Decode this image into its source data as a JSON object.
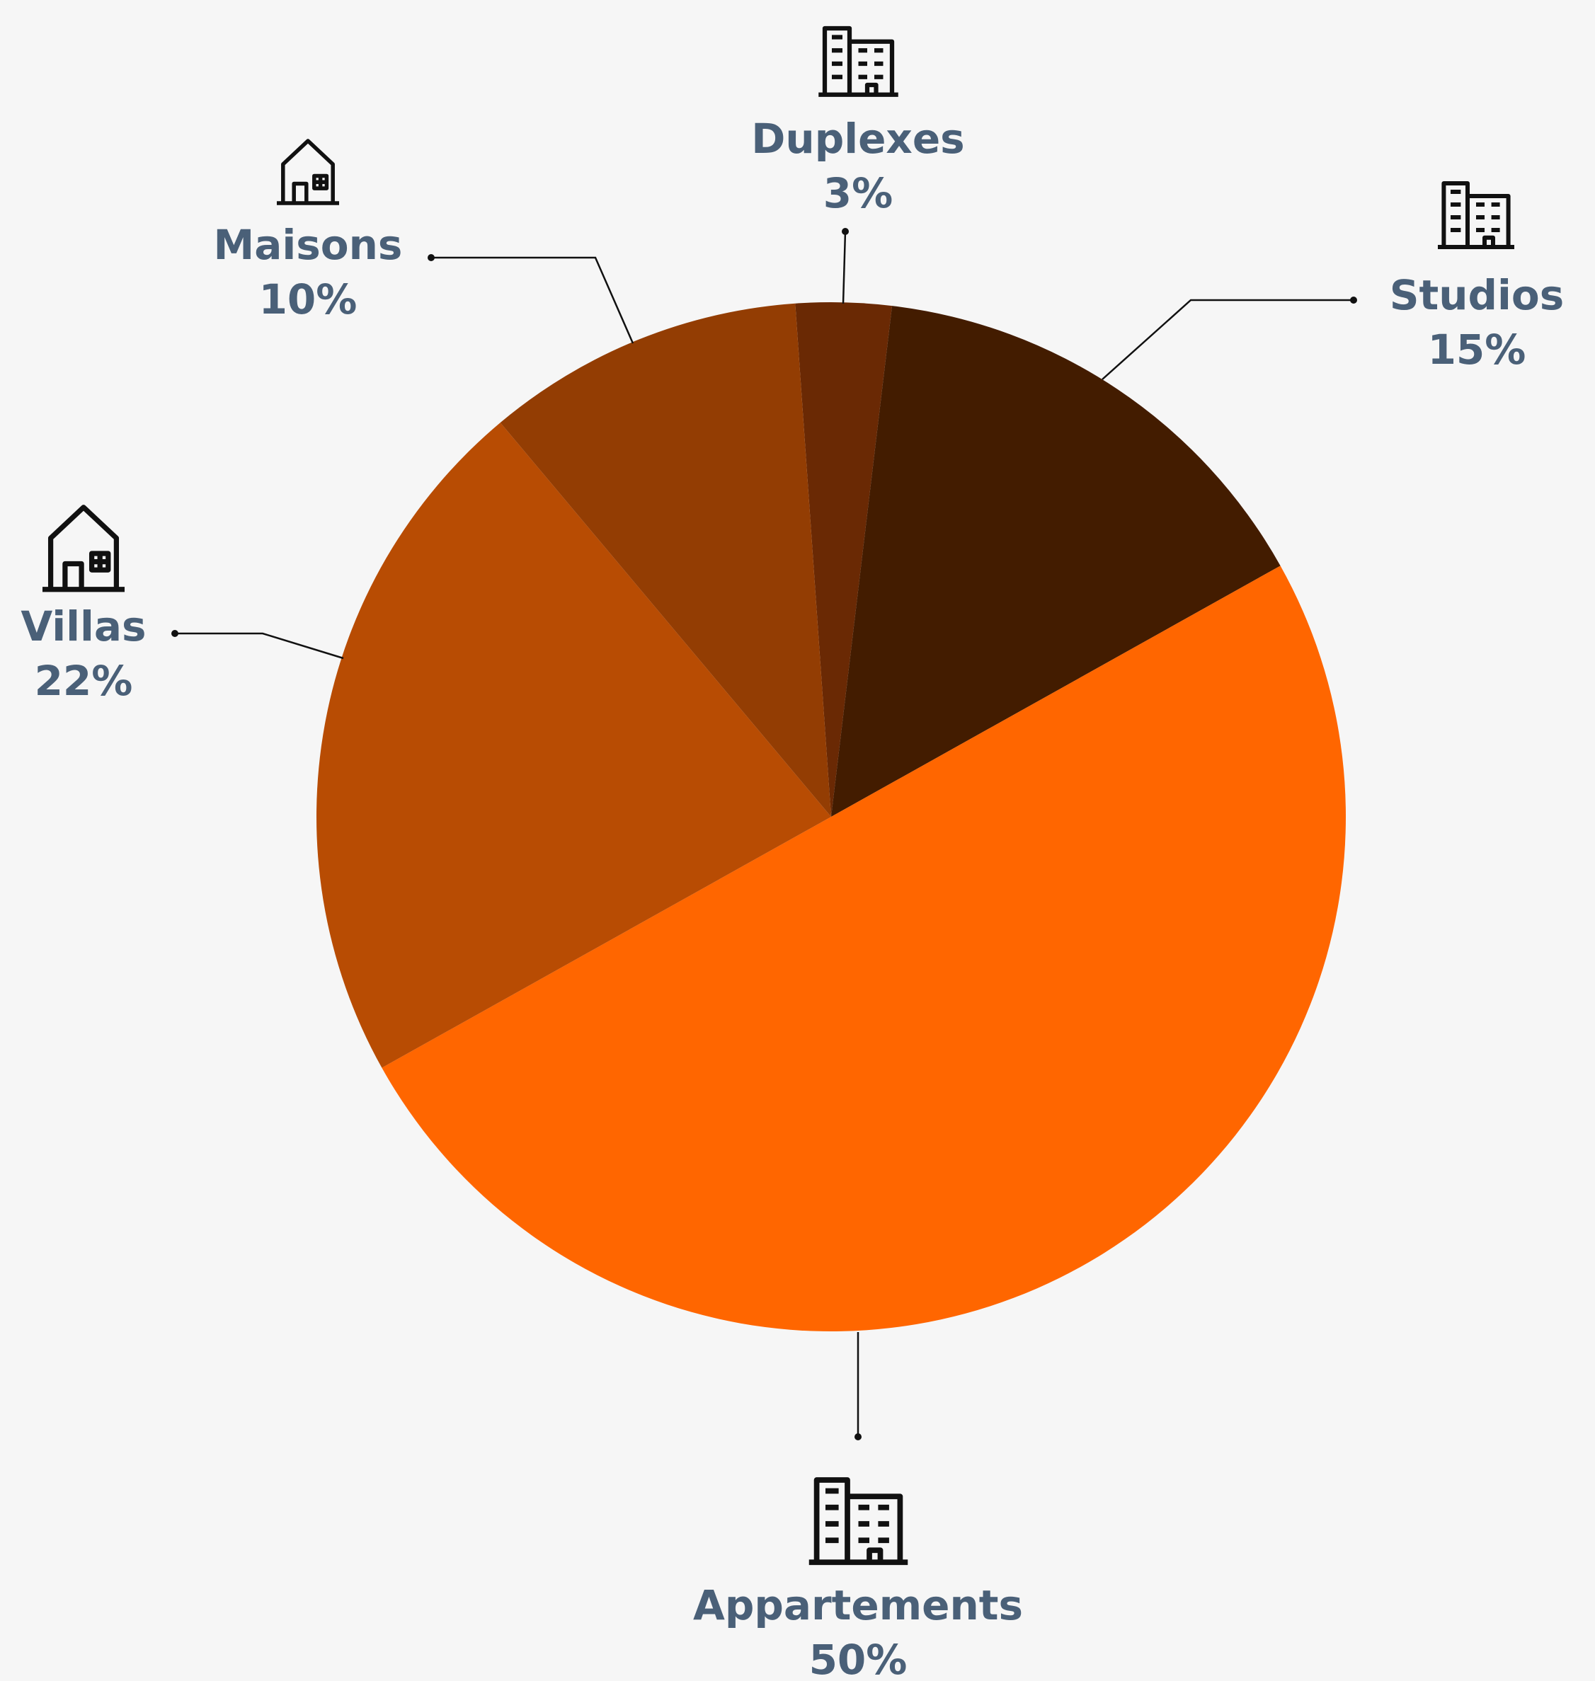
{
  "chart_data": {
    "type": "pie",
    "categories": [
      "Duplexes",
      "Studios",
      "Appartements",
      "Villas",
      "Maisons"
    ],
    "values": [
      3,
      15,
      50,
      22,
      10
    ],
    "value_labels": [
      "3%",
      "15%",
      "50%",
      "22%",
      "10%"
    ],
    "colors": [
      "#6a2904",
      "#431c00",
      "#ff6600",
      "#b84c03",
      "#933d03"
    ]
  }
}
